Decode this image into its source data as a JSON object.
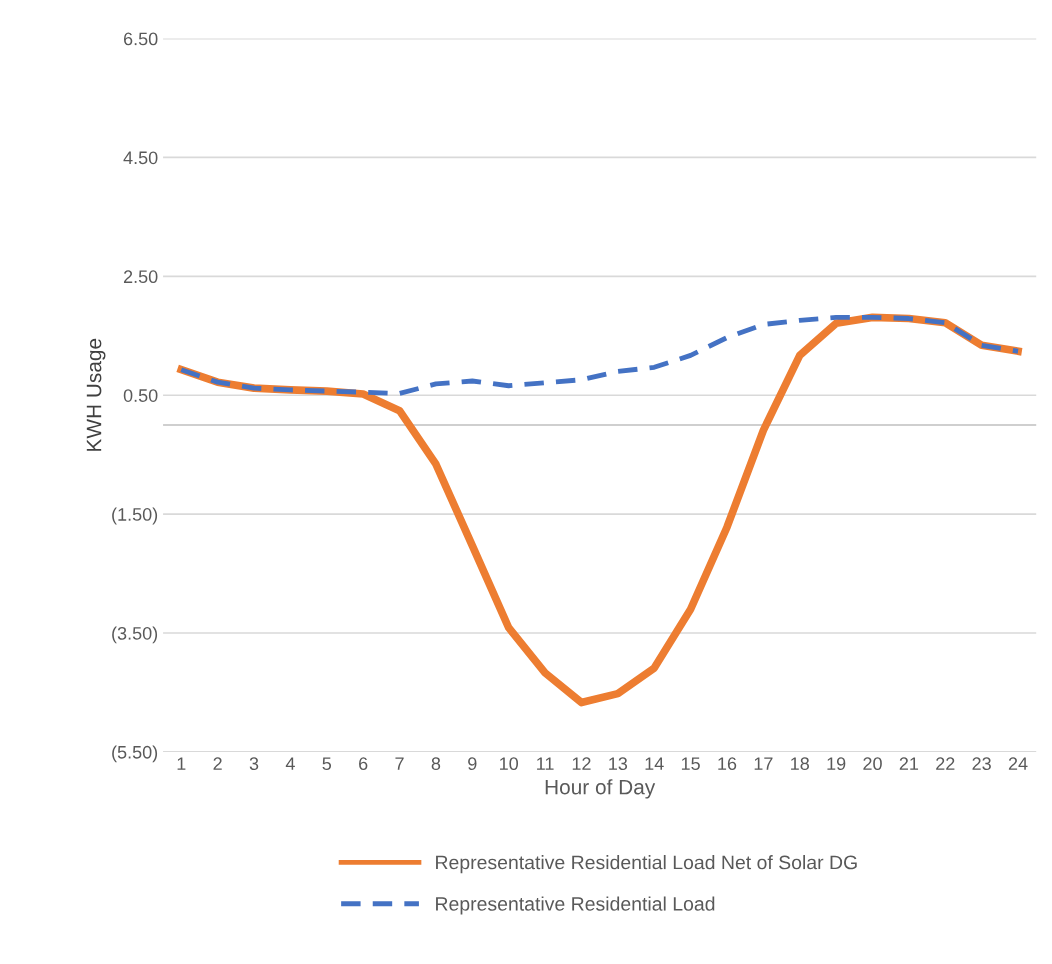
{
  "chart_data": {
    "type": "line",
    "xlabel": "Hour of Day",
    "ylabel": "KWH Usage",
    "categories": [
      "1",
      "2",
      "3",
      "4",
      "5",
      "6",
      "7",
      "8",
      "9",
      "10",
      "11",
      "12",
      "13",
      "14",
      "15",
      "16",
      "17",
      "18",
      "19",
      "20",
      "21",
      "22",
      "23",
      "24"
    ],
    "series": [
      {
        "name": "Representative Residential Load Net of Solar DG",
        "color": "#ed7d31",
        "line_style": "solid",
        "values": [
          0.93,
          0.72,
          0.62,
          0.59,
          0.57,
          0.52,
          0.24,
          -0.66,
          -2.03,
          -3.41,
          -4.17,
          -4.67,
          -4.52,
          -4.09,
          -3.1,
          -1.72,
          -0.09,
          1.17,
          1.71,
          1.81,
          1.79,
          1.72,
          1.34,
          1.24
        ]
      },
      {
        "name": "Representative Residential Load",
        "color": "#4472c4",
        "line_style": "dashed",
        "values": [
          0.93,
          0.72,
          0.62,
          0.59,
          0.57,
          0.55,
          0.53,
          0.69,
          0.74,
          0.66,
          0.71,
          0.76,
          0.9,
          0.97,
          1.17,
          1.47,
          1.69,
          1.76,
          1.81,
          1.81,
          1.79,
          1.72,
          1.34,
          1.24
        ]
      }
    ],
    "ylim": [
      -5.5,
      6.5
    ],
    "yticks": [
      {
        "value": -5.5,
        "label": "(5.50)"
      },
      {
        "value": -3.5,
        "label": "(3.50)"
      },
      {
        "value": -1.5,
        "label": "(1.50)"
      },
      {
        "value": 0.5,
        "label": "0.50"
      },
      {
        "value": 2.5,
        "label": "2.50"
      },
      {
        "value": 4.5,
        "label": "4.50"
      },
      {
        "value": 6.5,
        "label": "6.50"
      }
    ],
    "ref_lines": [
      {
        "axis": "y",
        "value": 0,
        "color": "#bfbfbf"
      }
    ],
    "grid": "y",
    "legend": "bottom",
    "marker": "none"
  }
}
